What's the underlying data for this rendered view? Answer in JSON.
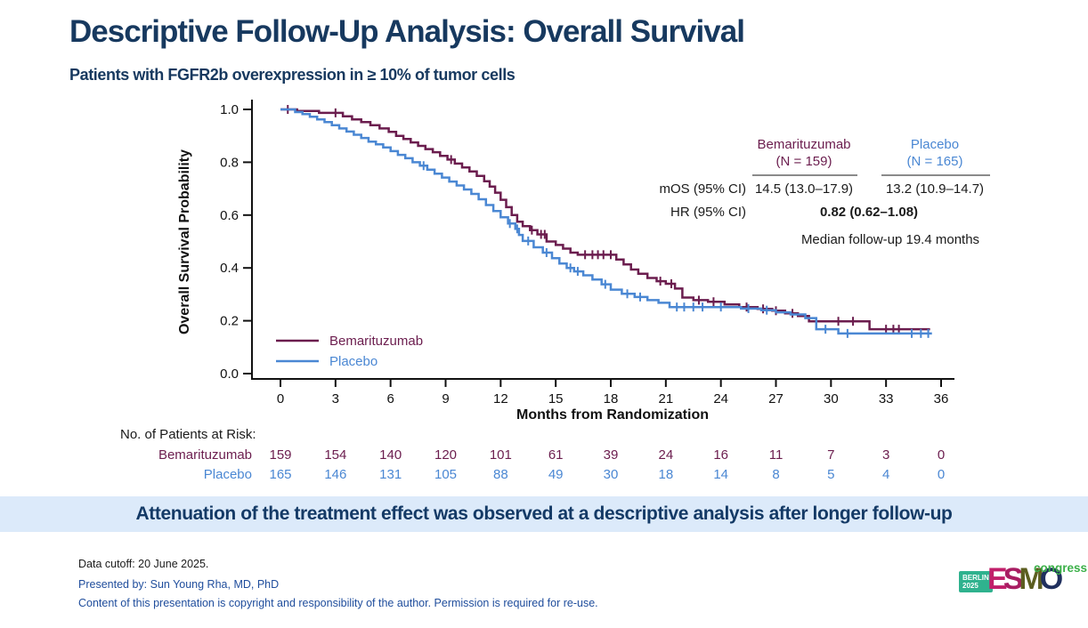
{
  "header": {
    "title": "Descriptive Follow-Up Analysis: Overall Survival",
    "subtitle": "Patients with FGFR2b overexpression in ≥ 10% of tumor cells"
  },
  "colors": {
    "navy": "#17395f",
    "bemarituzumab": "#6b1d4e",
    "placebo": "#4a87d3",
    "banner_bg": "#dceafa",
    "banner_text": "#143a66",
    "footer_blue": "#1f4d9c",
    "axis": "#111111",
    "header_rule": "#8a8a8a"
  },
  "chart_data": {
    "type": "line",
    "subtype": "kaplan-meier-step",
    "title": "",
    "xlabel": "Months from Randomization",
    "ylabel": "Overall Survival Probability",
    "xlim": [
      0,
      36
    ],
    "ylim": [
      0.0,
      1.0
    ],
    "xticks": [
      0,
      3,
      6,
      9,
      12,
      15,
      18,
      21,
      24,
      27,
      30,
      33,
      36
    ],
    "yticks": [
      "0.0",
      "0.2",
      "0.4",
      "0.6",
      "0.8",
      "1.0"
    ],
    "grid": false,
    "legend_position": "inside-bottom-left",
    "series": [
      {
        "name": "Bemarituzumab",
        "color": "#6b1d4e",
        "steps": [
          [
            0,
            1.0
          ],
          [
            0.9,
            0.994
          ],
          [
            2.1,
            0.987
          ],
          [
            3.4,
            0.974
          ],
          [
            3.9,
            0.962
          ],
          [
            4.4,
            0.952
          ],
          [
            4.9,
            0.94
          ],
          [
            5.4,
            0.928
          ],
          [
            5.9,
            0.915
          ],
          [
            6.3,
            0.9
          ],
          [
            6.7,
            0.888
          ],
          [
            7.1,
            0.875
          ],
          [
            7.5,
            0.862
          ],
          [
            7.9,
            0.85
          ],
          [
            8.3,
            0.838
          ],
          [
            8.7,
            0.824
          ],
          [
            9.1,
            0.81
          ],
          [
            9.5,
            0.795
          ],
          [
            9.9,
            0.78
          ],
          [
            10.3,
            0.765
          ],
          [
            10.7,
            0.748
          ],
          [
            11.1,
            0.728
          ],
          [
            11.4,
            0.708
          ],
          [
            11.7,
            0.685
          ],
          [
            12.0,
            0.658
          ],
          [
            12.3,
            0.63
          ],
          [
            12.6,
            0.6
          ],
          [
            12.9,
            0.575
          ],
          [
            13.2,
            0.558
          ],
          [
            13.6,
            0.543
          ],
          [
            14.0,
            0.527
          ],
          [
            14.5,
            0.5
          ],
          [
            15.0,
            0.487
          ],
          [
            15.4,
            0.473
          ],
          [
            15.8,
            0.458
          ],
          [
            16.2,
            0.45
          ],
          [
            18.3,
            0.432
          ],
          [
            18.7,
            0.413
          ],
          [
            19.1,
            0.394
          ],
          [
            19.5,
            0.378
          ],
          [
            20.0,
            0.362
          ],
          [
            20.5,
            0.35
          ],
          [
            21.0,
            0.34
          ],
          [
            21.5,
            0.322
          ],
          [
            21.9,
            0.288
          ],
          [
            22.5,
            0.278
          ],
          [
            23.3,
            0.272
          ],
          [
            24.2,
            0.262
          ],
          [
            25.0,
            0.252
          ],
          [
            26.0,
            0.245
          ],
          [
            26.8,
            0.238
          ],
          [
            27.5,
            0.228
          ],
          [
            28.2,
            0.218
          ],
          [
            28.8,
            0.198
          ],
          [
            32.1,
            0.168
          ],
          [
            35.4,
            0.168
          ]
        ],
        "censors": [
          [
            0.4,
            1.0
          ],
          [
            3.0,
            0.987
          ],
          [
            9.3,
            0.81
          ],
          [
            13.7,
            0.543
          ],
          [
            14.2,
            0.527
          ],
          [
            14.4,
            0.527
          ],
          [
            16.6,
            0.45
          ],
          [
            17.0,
            0.45
          ],
          [
            17.3,
            0.45
          ],
          [
            17.6,
            0.45
          ],
          [
            18.0,
            0.45
          ],
          [
            20.7,
            0.35
          ],
          [
            21.3,
            0.34
          ],
          [
            22.8,
            0.278
          ],
          [
            23.6,
            0.272
          ],
          [
            25.4,
            0.252
          ],
          [
            26.3,
            0.245
          ],
          [
            27.0,
            0.238
          ],
          [
            27.9,
            0.228
          ],
          [
            30.4,
            0.198
          ],
          [
            31.2,
            0.198
          ],
          [
            33.0,
            0.168
          ],
          [
            33.4,
            0.168
          ],
          [
            33.7,
            0.168
          ]
        ]
      },
      {
        "name": "Placebo",
        "color": "#4a87d3",
        "steps": [
          [
            0,
            1.0
          ],
          [
            0.8,
            0.99
          ],
          [
            1.2,
            0.982
          ],
          [
            1.6,
            0.972
          ],
          [
            2.0,
            0.962
          ],
          [
            2.4,
            0.952
          ],
          [
            2.8,
            0.94
          ],
          [
            3.2,
            0.928
          ],
          [
            3.6,
            0.916
          ],
          [
            4.0,
            0.904
          ],
          [
            4.4,
            0.892
          ],
          [
            4.8,
            0.878
          ],
          [
            5.2,
            0.868
          ],
          [
            5.6,
            0.856
          ],
          [
            6.0,
            0.842
          ],
          [
            6.4,
            0.828
          ],
          [
            6.8,
            0.815
          ],
          [
            7.2,
            0.8
          ],
          [
            7.6,
            0.787
          ],
          [
            8.0,
            0.772
          ],
          [
            8.4,
            0.757
          ],
          [
            8.8,
            0.742
          ],
          [
            9.2,
            0.727
          ],
          [
            9.6,
            0.712
          ],
          [
            10.0,
            0.697
          ],
          [
            10.4,
            0.68
          ],
          [
            10.8,
            0.66
          ],
          [
            11.2,
            0.638
          ],
          [
            11.6,
            0.615
          ],
          [
            12.0,
            0.592
          ],
          [
            12.4,
            0.568
          ],
          [
            12.8,
            0.548
          ],
          [
            13.0,
            0.525
          ],
          [
            13.2,
            0.502
          ],
          [
            13.8,
            0.478
          ],
          [
            14.3,
            0.458
          ],
          [
            14.8,
            0.437
          ],
          [
            15.2,
            0.417
          ],
          [
            15.6,
            0.4
          ],
          [
            16.0,
            0.387
          ],
          [
            16.5,
            0.372
          ],
          [
            17.0,
            0.356
          ],
          [
            17.5,
            0.338
          ],
          [
            18.0,
            0.318
          ],
          [
            18.6,
            0.302
          ],
          [
            19.3,
            0.29
          ],
          [
            20.0,
            0.278
          ],
          [
            20.6,
            0.268
          ],
          [
            21.2,
            0.252
          ],
          [
            25.1,
            0.246
          ],
          [
            26.2,
            0.24
          ],
          [
            27.0,
            0.232
          ],
          [
            27.8,
            0.224
          ],
          [
            28.6,
            0.21
          ],
          [
            29.2,
            0.168
          ],
          [
            30.4,
            0.152
          ],
          [
            35.5,
            0.152
          ]
        ],
        "censors": [
          [
            7.8,
            0.787
          ],
          [
            12.5,
            0.568
          ],
          [
            12.9,
            0.548
          ],
          [
            13.5,
            0.502
          ],
          [
            14.5,
            0.458
          ],
          [
            15.8,
            0.4
          ],
          [
            16.2,
            0.387
          ],
          [
            17.7,
            0.338
          ],
          [
            18.9,
            0.302
          ],
          [
            19.6,
            0.29
          ],
          [
            21.6,
            0.252
          ],
          [
            22.0,
            0.252
          ],
          [
            22.5,
            0.252
          ],
          [
            23.0,
            0.252
          ],
          [
            24.0,
            0.252
          ],
          [
            25.5,
            0.246
          ],
          [
            26.5,
            0.24
          ],
          [
            29.7,
            0.168
          ],
          [
            30.9,
            0.152
          ],
          [
            34.4,
            0.152
          ],
          [
            34.9,
            0.152
          ],
          [
            35.3,
            0.152
          ]
        ]
      }
    ]
  },
  "stats_panel": {
    "col1": {
      "name": "Bemarituzumab",
      "n": "(N = 159)"
    },
    "col2": {
      "name": "Placebo",
      "n": "(N = 165)"
    },
    "mos": {
      "label": "mOS (95% CI)",
      "col1": "14.5 (13.0–17.9)",
      "col2": "13.2 (10.9–14.7)"
    },
    "hr": {
      "label": "HR (95% CI)",
      "value": "0.82 (0.62–1.08)"
    },
    "note": "Median follow-up 19.4 months"
  },
  "at_risk": {
    "title": "No. of Patients at Risk:",
    "rows": [
      {
        "label": "Bemarituzumab",
        "color": "#6b1d4e",
        "counts": [
          159,
          154,
          140,
          120,
          101,
          61,
          39,
          24,
          16,
          11,
          7,
          3,
          0
        ]
      },
      {
        "label": "Placebo",
        "color": "#4a87d3",
        "counts": [
          165,
          146,
          131,
          105,
          88,
          49,
          30,
          18,
          14,
          8,
          5,
          4,
          0
        ]
      }
    ]
  },
  "banner": {
    "text": "Attenuation of the treatment effect was observed at a descriptive analysis after longer follow-up"
  },
  "footer": {
    "line1": "Data cutoff: 20 June 2025.",
    "line2": "Presented by: Sun Young Rha, MD, PhD",
    "line3": "Content of this presentation is copyright and responsibility of the author. Permission is required for re-use."
  },
  "logo": {
    "badge_line1": "BERLIN",
    "badge_line2": "2025",
    "badge_bg": "#2fb28e",
    "letters": [
      {
        "ch": "E",
        "color": "#c11f6a"
      },
      {
        "ch": "S",
        "color": "#a81d62"
      },
      {
        "ch": "M",
        "color": "#5c5e20"
      },
      {
        "ch": "O",
        "color": "#20305e"
      }
    ],
    "congress": "congress",
    "congress_color": "#3cb049"
  }
}
